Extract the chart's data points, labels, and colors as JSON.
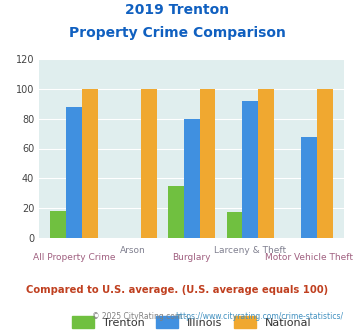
{
  "title_line1": "2019 Trenton",
  "title_line2": "Property Crime Comparison",
  "categories": [
    "All Property Crime",
    "Arson",
    "Burglary",
    "Larceny & Theft",
    "Motor Vehicle Theft"
  ],
  "trenton": [
    18,
    0,
    35,
    17,
    0
  ],
  "illinois": [
    88,
    0,
    80,
    92,
    68
  ],
  "national": [
    100,
    100,
    100,
    100,
    100
  ],
  "bar_color_trenton": "#70c040",
  "bar_color_illinois": "#4090e0",
  "bar_color_national": "#f0a830",
  "ylim": [
    0,
    120
  ],
  "yticks": [
    0,
    20,
    40,
    60,
    80,
    100,
    120
  ],
  "plot_bg": "#e0eeee",
  "fig_bg": "#ffffff",
  "title_color": "#1060c0",
  "xlabel_color_bottom": "#a06080",
  "xlabel_color_top": "#808090",
  "footer_text": "Compared to U.S. average. (U.S. average equals 100)",
  "footer_color": "#c04020",
  "copyright_text1": "© 2025 CityRating.com - ",
  "copyright_text2": "https://www.cityrating.com/crime-statistics/",
  "copyright_color1": "#808080",
  "copyright_color2": "#4090c0",
  "legend_labels": [
    "Trenton",
    "Illinois",
    "National"
  ]
}
